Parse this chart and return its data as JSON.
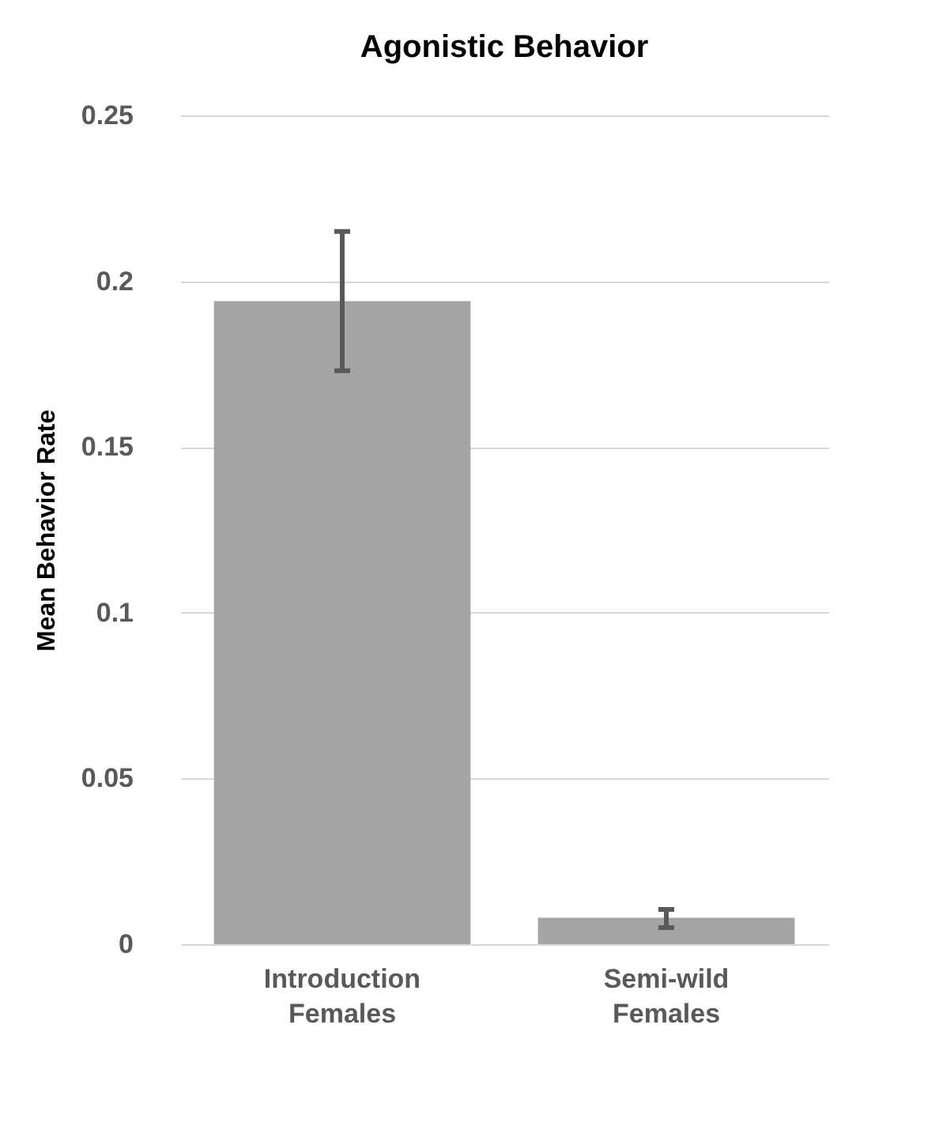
{
  "chart_data": {
    "type": "bar",
    "title": "Agonistic Behavior",
    "ylabel": "Mean Behavior Rate",
    "categories": [
      "Introduction Females",
      "Semi-wild Females"
    ],
    "values": [
      0.194,
      0.008
    ],
    "color": "#a5a5a5",
    "errors": [
      [
        0.173,
        0.215
      ],
      [
        0.005,
        0.0105
      ]
    ],
    "ylim": [
      0,
      0.25
    ],
    "yticks": [
      0,
      0.05,
      0.1,
      0.15,
      0.2,
      0.25
    ],
    "grid": "y"
  }
}
